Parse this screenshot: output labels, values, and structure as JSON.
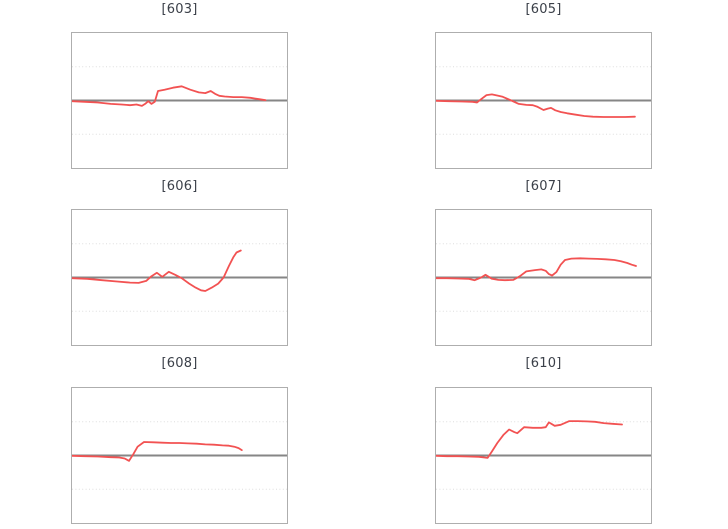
{
  "style": {
    "background": "#ffffff",
    "line_color": "#f25252",
    "zero_line_color": "#868686",
    "grid_color": "#dedede",
    "border_color": "#aeaeae",
    "title_color": "#3b4049"
  },
  "figure": {
    "columns": 2,
    "rows": 3,
    "tick_labels_visible": false
  },
  "chart_data": [
    {
      "type": "line",
      "title": "[603]",
      "x_unit": "fraction-of-width",
      "x_range": [
        0,
        1
      ],
      "ylim": [
        -1,
        1
      ],
      "zero_line_y": 0,
      "gridlines_y": [
        0.5,
        -0.5
      ],
      "grid_style": "dotted",
      "legend": false,
      "series": [
        {
          "name": "[603]",
          "color": "#f25252",
          "points": [
            [
              0,
              -0.01
            ],
            [
              0.06,
              -0.02
            ],
            [
              0.12,
              -0.03
            ],
            [
              0.18,
              -0.05
            ],
            [
              0.23,
              -0.06
            ],
            [
              0.27,
              -0.07
            ],
            [
              0.3,
              -0.06
            ],
            [
              0.325,
              -0.08
            ],
            [
              0.34,
              -0.05
            ],
            [
              0.355,
              -0.01
            ],
            [
              0.37,
              -0.05
            ],
            [
              0.385,
              -0.02
            ],
            [
              0.4,
              0.14
            ],
            [
              0.43,
              0.16
            ],
            [
              0.47,
              0.19
            ],
            [
              0.51,
              0.21
            ],
            [
              0.55,
              0.16
            ],
            [
              0.59,
              0.12
            ],
            [
              0.62,
              0.11
            ],
            [
              0.645,
              0.14
            ],
            [
              0.665,
              0.1
            ],
            [
              0.685,
              0.07
            ],
            [
              0.71,
              0.06
            ],
            [
              0.75,
              0.05
            ],
            [
              0.79,
              0.05
            ],
            [
              0.83,
              0.04
            ],
            [
              0.87,
              0.02
            ],
            [
              0.9,
              0.005
            ]
          ]
        }
      ]
    },
    {
      "type": "line",
      "title": "[605]",
      "x_unit": "fraction-of-width",
      "x_range": [
        0,
        1
      ],
      "ylim": [
        -1,
        1
      ],
      "zero_line_y": 0,
      "gridlines_y": [
        0.5,
        -0.5
      ],
      "grid_style": "dotted",
      "legend": false,
      "series": [
        {
          "name": "[605]",
          "color": "#f25252",
          "points": [
            [
              0,
              -0.005
            ],
            [
              0.06,
              -0.01
            ],
            [
              0.12,
              -0.015
            ],
            [
              0.17,
              -0.02
            ],
            [
              0.19,
              -0.03
            ],
            [
              0.21,
              0.02
            ],
            [
              0.235,
              0.08
            ],
            [
              0.26,
              0.09
            ],
            [
              0.29,
              0.07
            ],
            [
              0.31,
              0.055
            ],
            [
              0.35,
              0
            ],
            [
              0.385,
              -0.05
            ],
            [
              0.42,
              -0.065
            ],
            [
              0.45,
              -0.07
            ],
            [
              0.47,
              -0.09
            ],
            [
              0.5,
              -0.14
            ],
            [
              0.52,
              -0.12
            ],
            [
              0.535,
              -0.11
            ],
            [
              0.555,
              -0.145
            ],
            [
              0.58,
              -0.17
            ],
            [
              0.61,
              -0.19
            ],
            [
              0.65,
              -0.21
            ],
            [
              0.69,
              -0.23
            ],
            [
              0.73,
              -0.24
            ],
            [
              0.78,
              -0.245
            ],
            [
              0.83,
              -0.245
            ],
            [
              0.88,
              -0.245
            ],
            [
              0.925,
              -0.24
            ]
          ]
        }
      ]
    },
    {
      "type": "line",
      "title": "[606]",
      "x_unit": "fraction-of-width",
      "x_range": [
        0,
        1
      ],
      "ylim": [
        -1,
        1
      ],
      "zero_line_y": 0,
      "gridlines_y": [
        0.5,
        -0.5
      ],
      "grid_style": "dotted",
      "legend": false,
      "series": [
        {
          "name": "[606]",
          "color": "#f25252",
          "points": [
            [
              0,
              -0.01
            ],
            [
              0.07,
              -0.02
            ],
            [
              0.14,
              -0.04
            ],
            [
              0.21,
              -0.06
            ],
            [
              0.27,
              -0.075
            ],
            [
              0.31,
              -0.08
            ],
            [
              0.345,
              -0.05
            ],
            [
              0.37,
              0.02
            ],
            [
              0.395,
              0.07
            ],
            [
              0.42,
              0.01
            ],
            [
              0.45,
              0.085
            ],
            [
              0.48,
              0.04
            ],
            [
              0.51,
              -0.01
            ],
            [
              0.545,
              -0.09
            ],
            [
              0.575,
              -0.15
            ],
            [
              0.6,
              -0.19
            ],
            [
              0.62,
              -0.2
            ],
            [
              0.65,
              -0.15
            ],
            [
              0.68,
              -0.09
            ],
            [
              0.705,
              0
            ],
            [
              0.73,
              0.17
            ],
            [
              0.75,
              0.3
            ],
            [
              0.765,
              0.37
            ],
            [
              0.785,
              0.4
            ]
          ]
        }
      ]
    },
    {
      "type": "line",
      "title": "[607]",
      "x_unit": "fraction-of-width",
      "x_range": [
        0,
        1
      ],
      "ylim": [
        -1,
        1
      ],
      "zero_line_y": 0,
      "gridlines_y": [
        0.5,
        -0.5
      ],
      "grid_style": "dotted",
      "legend": false,
      "series": [
        {
          "name": "[607]",
          "color": "#f25252",
          "points": [
            [
              0,
              -0.01
            ],
            [
              0.05,
              -0.01
            ],
            [
              0.1,
              -0.015
            ],
            [
              0.15,
              -0.02
            ],
            [
              0.18,
              -0.04
            ],
            [
              0.21,
              0
            ],
            [
              0.23,
              0.04
            ],
            [
              0.26,
              -0.02
            ],
            [
              0.29,
              -0.035
            ],
            [
              0.32,
              -0.04
            ],
            [
              0.36,
              -0.035
            ],
            [
              0.39,
              0.02
            ],
            [
              0.42,
              0.09
            ],
            [
              0.46,
              0.11
            ],
            [
              0.49,
              0.12
            ],
            [
              0.51,
              0.1
            ],
            [
              0.525,
              0.05
            ],
            [
              0.54,
              0.03
            ],
            [
              0.56,
              0.08
            ],
            [
              0.58,
              0.19
            ],
            [
              0.6,
              0.26
            ],
            [
              0.63,
              0.28
            ],
            [
              0.67,
              0.285
            ],
            [
              0.71,
              0.28
            ],
            [
              0.75,
              0.275
            ],
            [
              0.79,
              0.27
            ],
            [
              0.83,
              0.26
            ],
            [
              0.86,
              0.24
            ],
            [
              0.89,
              0.215
            ],
            [
              0.91,
              0.19
            ],
            [
              0.93,
              0.17
            ]
          ]
        }
      ]
    },
    {
      "type": "line",
      "title": "[608]",
      "x_unit": "fraction-of-width",
      "x_range": [
        0,
        1
      ],
      "ylim": [
        -1,
        1
      ],
      "zero_line_y": 0,
      "gridlines_y": [
        0.5,
        -0.5
      ],
      "grid_style": "dotted",
      "legend": false,
      "series": [
        {
          "name": "[608]",
          "color": "#f25252",
          "points": [
            [
              0,
              -0.005
            ],
            [
              0.06,
              -0.01
            ],
            [
              0.12,
              -0.015
            ],
            [
              0.18,
              -0.025
            ],
            [
              0.22,
              -0.03
            ],
            [
              0.245,
              -0.045
            ],
            [
              0.265,
              -0.08
            ],
            [
              0.285,
              0.02
            ],
            [
              0.305,
              0.13
            ],
            [
              0.335,
              0.2
            ],
            [
              0.38,
              0.195
            ],
            [
              0.42,
              0.19
            ],
            [
              0.46,
              0.185
            ],
            [
              0.5,
              0.185
            ],
            [
              0.54,
              0.18
            ],
            [
              0.58,
              0.175
            ],
            [
              0.62,
              0.165
            ],
            [
              0.66,
              0.16
            ],
            [
              0.7,
              0.15
            ],
            [
              0.73,
              0.145
            ],
            [
              0.755,
              0.13
            ],
            [
              0.775,
              0.11
            ],
            [
              0.79,
              0.08
            ]
          ]
        }
      ]
    },
    {
      "type": "line",
      "title": "[610]",
      "x_unit": "fraction-of-width",
      "x_range": [
        0,
        1
      ],
      "ylim": [
        -1,
        1
      ],
      "zero_line_y": 0,
      "gridlines_y": [
        0.5,
        -0.5
      ],
      "grid_style": "dotted",
      "legend": false,
      "series": [
        {
          "name": "[610]",
          "color": "#f25252",
          "points": [
            [
              0,
              -0.005
            ],
            [
              0.05,
              -0.01
            ],
            [
              0.1,
              -0.01
            ],
            [
              0.15,
              -0.015
            ],
            [
              0.2,
              -0.02
            ],
            [
              0.225,
              -0.03
            ],
            [
              0.24,
              -0.035
            ],
            [
              0.26,
              0.06
            ],
            [
              0.285,
              0.185
            ],
            [
              0.315,
              0.31
            ],
            [
              0.34,
              0.385
            ],
            [
              0.365,
              0.345
            ],
            [
              0.378,
              0.33
            ],
            [
              0.41,
              0.42
            ],
            [
              0.45,
              0.41
            ],
            [
              0.49,
              0.41
            ],
            [
              0.51,
              0.42
            ],
            [
              0.525,
              0.49
            ],
            [
              0.552,
              0.44
            ],
            [
              0.58,
              0.455
            ],
            [
              0.62,
              0.51
            ],
            [
              0.66,
              0.51
            ],
            [
              0.7,
              0.505
            ],
            [
              0.74,
              0.5
            ],
            [
              0.78,
              0.48
            ],
            [
              0.82,
              0.47
            ],
            [
              0.865,
              0.46
            ]
          ]
        }
      ]
    }
  ]
}
